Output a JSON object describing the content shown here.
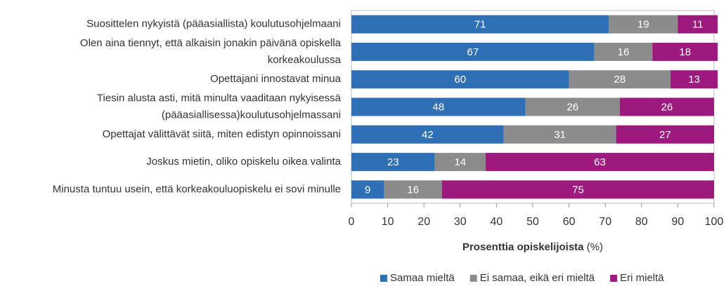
{
  "chart_data": {
    "type": "stacked_barh",
    "categories": [
      "Suosittelen nykyistä (pääasiallista) koulutusohjelmaani",
      "Olen aina tiennyt, että alkaisin jonakin päivänä opiskella\nkorkeakoulussa",
      "Opettajani innostavat minua",
      "Tiesin alusta asti, mitä minulta vaaditaan nykyisessä\n(pääasiallisessa)koulutusohjelmassani",
      "Opettajat välittävät siitä, miten edistyn opinnoissani",
      "Joskus mietin, oliko opiskelu oikea valinta",
      "Minusta tuntuu usein, että korkeakouluopiskelu ei sovi minulle"
    ],
    "series": [
      {
        "name": "Samaa mieltä",
        "color": "#2e6fb5",
        "values": [
          71,
          67,
          60,
          48,
          42,
          23,
          9
        ]
      },
      {
        "name": "Ei samaa, eikä eri mieltä",
        "color": "#8c8c8c",
        "values": [
          19,
          16,
          28,
          26,
          31,
          14,
          16
        ]
      },
      {
        "name": "Eri mieltä",
        "color": "#9c1a7d",
        "values": [
          11,
          18,
          13,
          26,
          27,
          63,
          75
        ]
      }
    ],
    "xlabel": "Prosenttia opiskelijoista",
    "xlabel_unit": "(%)",
    "xlim": [
      0,
      100
    ],
    "xticks": [
      0,
      10,
      20,
      30,
      40,
      50,
      60,
      70,
      80,
      90,
      100
    ],
    "legend": "bottom"
  }
}
